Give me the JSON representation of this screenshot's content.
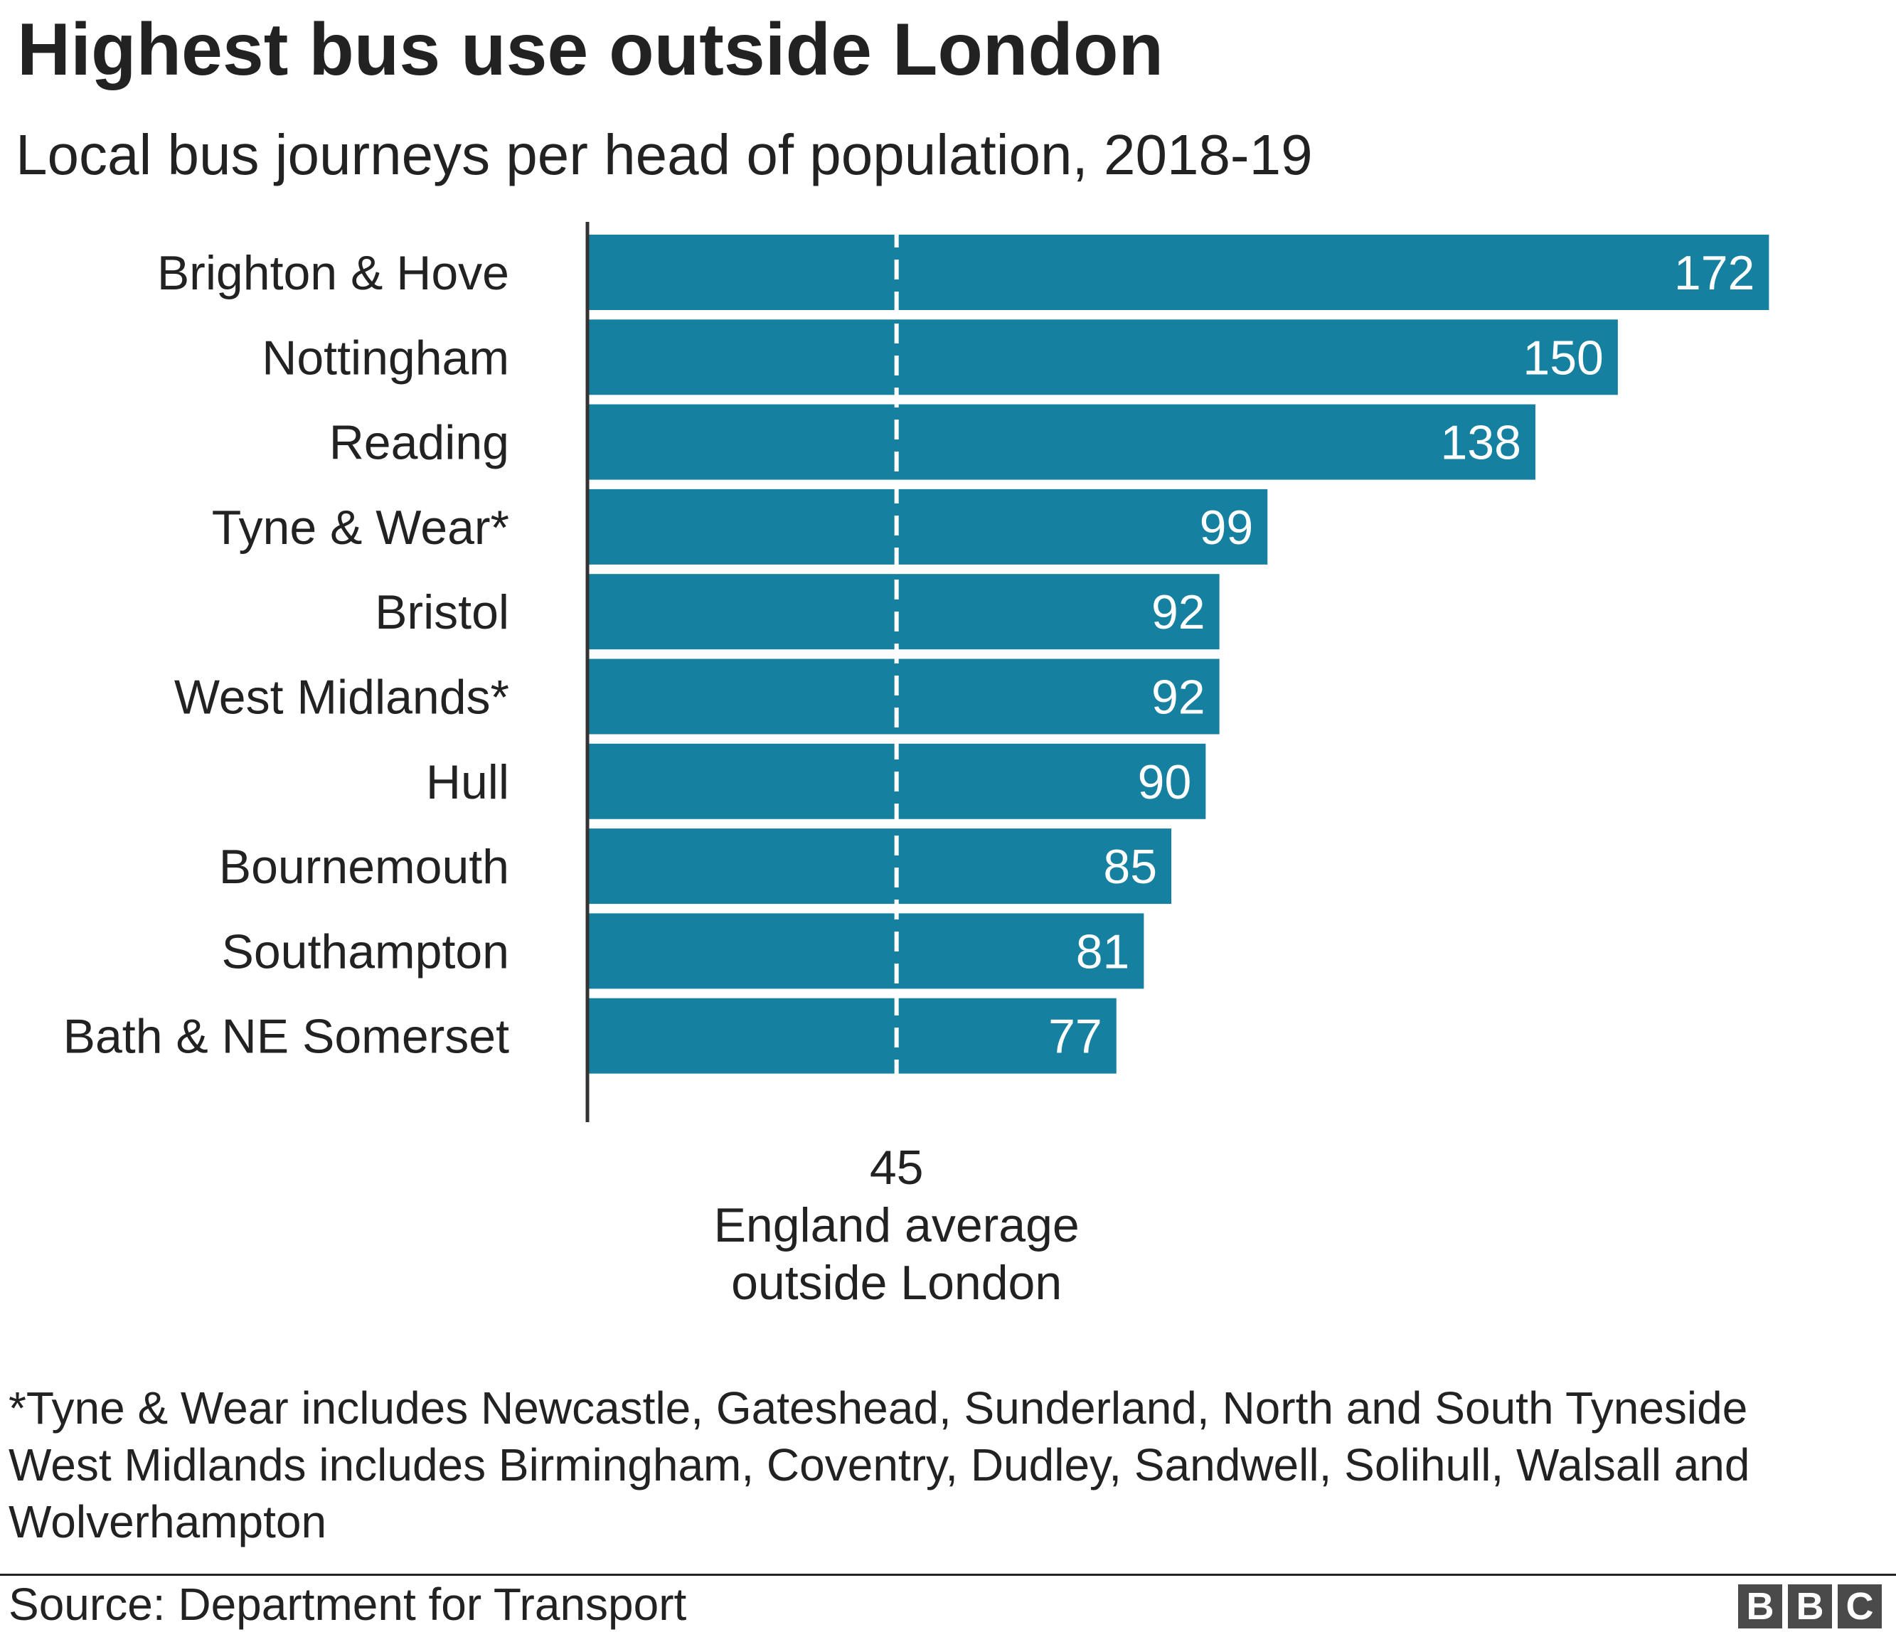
{
  "title": "Highest bus use outside London",
  "subtitle": "Local bus journeys per head of population, 2018-19",
  "chart_data": {
    "type": "bar",
    "orientation": "horizontal",
    "categories": [
      "Brighton & Hove",
      "Nottingham",
      "Reading",
      "Tyne & Wear*",
      "Bristol",
      "West Midlands*",
      "Hull",
      "Bournemouth",
      "Southampton",
      "Bath & NE Somerset"
    ],
    "values": [
      172,
      150,
      138,
      99,
      92,
      92,
      90,
      85,
      81,
      77
    ],
    "xlim": [
      0,
      176
    ],
    "reference_line": {
      "value": 45,
      "label_value": "45",
      "label_line1": "England average",
      "label_line2": "outside London"
    },
    "bar_color": "#1580a0",
    "grid": false
  },
  "footnote": {
    "line1": "*Tyne & Wear includes Newcastle, Gateshead, Sunderland, North and South Tyneside",
    "line2": "West Midlands includes Birmingham, Coventry, Dudley, Sandwell, Solihull, Walsall and Wolverhampton"
  },
  "source": "Source: Department for Transport",
  "logo": [
    "B",
    "B",
    "C"
  ]
}
